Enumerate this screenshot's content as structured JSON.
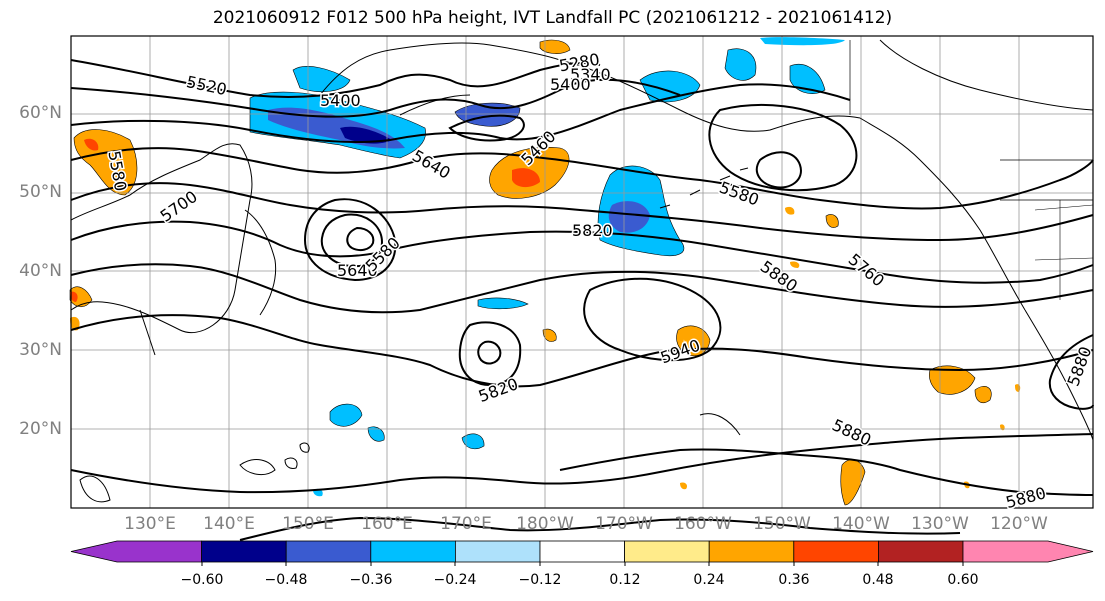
{
  "title": "2021060912 F012 500 hPa height, IVT Landfall PC (2021061212 - 2021061412)",
  "lat_labels": [
    "60°N",
    "50°N",
    "40°N",
    "30°N",
    "20°N"
  ],
  "lon_labels": [
    "130°E",
    "140°E",
    "150°E",
    "160°E",
    "170°E",
    "180°W",
    "170°W",
    "160°W",
    "150°W",
    "140°W",
    "130°W",
    "120°W"
  ],
  "contour_labels": [
    "5520",
    "5400",
    "5280",
    "5340",
    "5400",
    "5460",
    "5580",
    "5700",
    "5640",
    "5640",
    "5580",
    "5580",
    "5820",
    "5760",
    "5880",
    "5940",
    "5820",
    "5880",
    "5880",
    "5880"
  ],
  "colorbar": {
    "ticks": [
      "−0.60",
      "−0.48",
      "−0.36",
      "−0.24",
      "−0.12",
      "0.12",
      "0.24",
      "0.36",
      "0.48",
      "0.60"
    ],
    "colors": [
      "#9933cc",
      "#00008b",
      "#3a5bd0",
      "#00bfff",
      "#aee1fb",
      "#ffffff",
      "#ffeb8a",
      "#ffa500",
      "#ff4500",
      "#b22222",
      "#ff85b0"
    ]
  },
  "colors": {
    "coast": "#000000",
    "grid": "#999999",
    "contour": "#000000"
  }
}
